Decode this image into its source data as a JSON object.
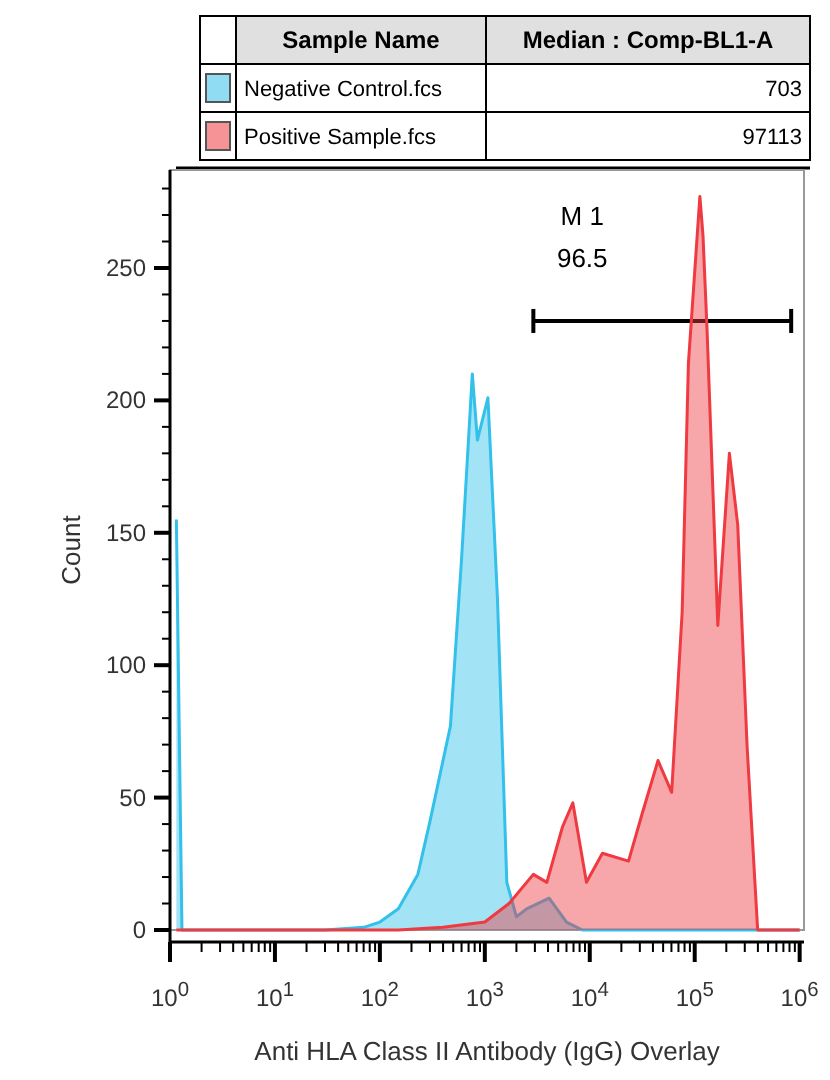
{
  "chart_data": {
    "type": "area",
    "xlabel": "Anti HLA Class II Antibody (IgG) Overlay",
    "ylabel": "Count",
    "legend_title": "Sample Name",
    "legend": "top",
    "log": "x",
    "annotations": [
      "Median : Comp-BL1-A",
      "703",
      "97113",
      "M 1",
      "96.5"
    ],
    "xlim": [
      1,
      1100000
    ],
    "ylim": [
      0,
      287
    ],
    "xticks": [
      {
        "value": 1,
        "label": "10$^{0}$"
      },
      {
        "value": 2,
        "label": null
      },
      {
        "value": 3,
        "label": null
      },
      {
        "value": 4,
        "label": null
      },
      {
        "value": 5,
        "label": null
      },
      {
        "value": 6,
        "label": null
      },
      {
        "value": 7,
        "label": null
      },
      {
        "value": 8,
        "label": null
      },
      {
        "value": 9,
        "label": null
      },
      {
        "value": 10,
        "label": "10$^{1}$"
      },
      {
        "value": 20,
        "label": null
      },
      {
        "value": 30,
        "label": null
      },
      {
        "value": 40,
        "label": null
      },
      {
        "value": 50,
        "label": null
      },
      {
        "value": 60,
        "label": null
      },
      {
        "value": 70,
        "label": null
      },
      {
        "value": 80,
        "label": null
      },
      {
        "value": 90,
        "label": null
      },
      {
        "value": 100,
        "label": "10$^{2}$"
      },
      {
        "value": 200,
        "label": null
      },
      {
        "value": 300,
        "label": null
      },
      {
        "value": 400,
        "label": null
      },
      {
        "value": 500,
        "label": null
      },
      {
        "value": 600,
        "label": null
      },
      {
        "value": 700,
        "label": null
      },
      {
        "value": 800,
        "label": null
      },
      {
        "value": 900,
        "label": null
      },
      {
        "value": 1000,
        "label": "10$^{3}$"
      },
      {
        "value": 2000,
        "label": null
      },
      {
        "value": 3000,
        "label": null
      },
      {
        "value": 4000,
        "label": null
      },
      {
        "value": 5000,
        "label": null
      },
      {
        "value": 6000,
        "label": null
      },
      {
        "value": 7000,
        "label": null
      },
      {
        "value": 8000,
        "label": null
      },
      {
        "value": 9000,
        "label": null
      },
      {
        "value": 10000,
        "label": "10$^{4}$"
      },
      {
        "value": 20000,
        "label": null
      },
      {
        "value": 30000,
        "label": null
      },
      {
        "value": 40000,
        "label": null
      },
      {
        "value": 50000,
        "label": null
      },
      {
        "value": 60000,
        "label": null
      },
      {
        "value": 70000,
        "label": null
      },
      {
        "value": 80000,
        "label": null
      },
      {
        "value": 90000,
        "label": null
      },
      {
        "value": 100000,
        "label": "10$^{5}$"
      },
      {
        "value": 200000,
        "label": null
      },
      {
        "value": 300000,
        "label": null
      },
      {
        "value": 400000,
        "label": null
      },
      {
        "value": 500000,
        "label": null
      },
      {
        "value": 600000,
        "label": null
      },
      {
        "value": 700000,
        "label": null
      },
      {
        "value": 800000,
        "label": null
      },
      {
        "value": 900000,
        "label": null
      },
      {
        "value": 1000000,
        "label": "10$^{6}$"
      }
    ],
    "yticks": [
      0,
      {
        "value": 10,
        "label": null
      },
      {
        "value": 20,
        "label": null
      },
      {
        "value": 30,
        "label": null
      },
      {
        "value": 40,
        "label": null
      },
      50,
      {
        "value": 60,
        "label": null
      },
      {
        "value": 70,
        "label": null
      },
      {
        "value": 80,
        "label": null
      },
      {
        "value": 90,
        "label": null
      },
      100,
      {
        "value": 110,
        "label": null
      },
      {
        "value": 120,
        "label": null
      },
      {
        "value": 130,
        "label": null
      },
      {
        "value": 140,
        "label": null
      },
      150,
      {
        "value": 160,
        "label": null
      },
      {
        "value": 170,
        "label": null
      },
      {
        "value": 180,
        "label": null
      },
      {
        "value": 190,
        "label": null
      },
      200,
      {
        "value": 210,
        "label": null
      },
      {
        "value": 220,
        "label": null
      },
      {
        "value": 230,
        "label": null
      },
      {
        "value": 240,
        "label": null
      },
      250,
      {
        "value": 260,
        "label": null
      },
      {
        "value": 270,
        "label": null
      },
      {
        "value": 280,
        "label": null
      }
    ],
    "series": [
      {
        "type": "line",
        "color": "#000000",
        "x": [
          2900,
          830000
        ],
        "values": [
          230,
          230
        ]
      },
      {
        "name": "Negative Control.fcs",
        "color": "#33c0ea",
        "x": [
          1.15,
          1.3,
          30,
          70,
          100,
          150,
          230,
          300,
          470,
          600,
          760,
          850,
          1070,
          1320,
          1620,
          2000,
          2500,
          4100,
          6000,
          8500,
          1000000
        ],
        "values": [
          155,
          0,
          0,
          1,
          3,
          8,
          21,
          41,
          77,
          140,
          210,
          185,
          201,
          125,
          18,
          5,
          8,
          12,
          3,
          0,
          0
        ]
      },
      {
        "name": "Positive Sample.fcs",
        "color": "#ee3a40",
        "x": [
          1.15,
          150,
          400,
          1000,
          1700,
          2900,
          3900,
          5500,
          6900,
          9300,
          13200,
          23400,
          31600,
          44700,
          60300,
          75900,
          87100,
          112000,
          120000,
          131000,
          166000,
          214000,
          257000,
          316000,
          398000,
          500000,
          1000000
        ],
        "values": [
          0,
          0,
          1,
          3,
          10,
          21,
          18,
          39,
          48,
          18,
          29,
          26,
          44,
          64,
          52,
          120,
          214,
          277,
          262,
          227,
          115,
          180,
          153,
          69,
          0,
          0,
          0
        ]
      }
    ]
  }
}
